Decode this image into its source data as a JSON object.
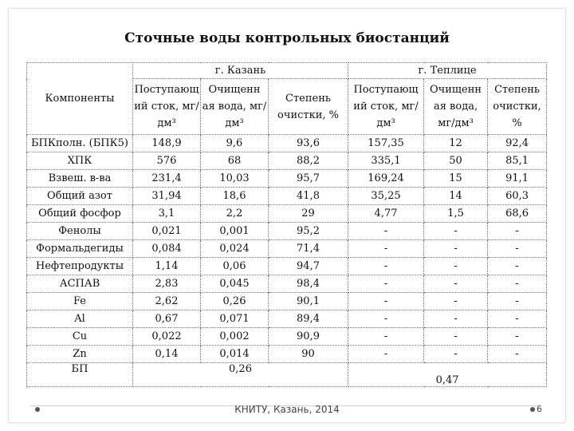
{
  "title": "Сточные воды контрольных биостанций",
  "table": {
    "components_header": "Компоненты",
    "city1": "г. Казань",
    "city2": "г. Теплице",
    "sub_headers": [
      "Поступающ ий сток, мг/дм³",
      "Очищенн ая вода, мг/дм³",
      "Степень очистки, %",
      "Поступающ ий сток, мг/дм³",
      "Очищенн ая вода, мг/дм³",
      "Степень очистки, %"
    ],
    "rows": [
      [
        "БПКполн. (БПК5)",
        "148,9",
        "9,6",
        "93,6",
        "157,35",
        "12",
        "92,4"
      ],
      [
        "ХПК",
        "576",
        "68",
        "88,2",
        "335,1",
        "50",
        "85,1"
      ],
      [
        "Взвеш. в-ва",
        "231,4",
        "10,03",
        "95,7",
        "169,24",
        "15",
        "91,1"
      ],
      [
        "Общий азот",
        "31,94",
        "18,6",
        "41,8",
        "35,25",
        "14",
        "60,3"
      ],
      [
        "Общий фосфор",
        "3,1",
        "2,2",
        "29",
        "4,77",
        "1,5",
        "68,6"
      ],
      [
        "Фенолы",
        "0,021",
        "0,001",
        "95,2",
        "-",
        "-",
        "-"
      ],
      [
        "Формальдегиды",
        "0,084",
        "0,024",
        "71,4",
        "-",
        "-",
        "-"
      ],
      [
        "Нефтепродукты",
        "1,14",
        "0,06",
        "94,7",
        "-",
        "-",
        "-"
      ],
      [
        "АСПАВ",
        "2,83",
        "0,045",
        "98,4",
        "-",
        "-",
        "-"
      ],
      [
        "Fe",
        "2,62",
        "0,26",
        "90,1",
        "-",
        "-",
        "-"
      ],
      [
        "Al",
        "0,67",
        "0,071",
        "89,4",
        "-",
        "-",
        "-"
      ],
      [
        "Cu",
        "0,022",
        "0,002",
        "90,9",
        "-",
        "-",
        "-"
      ],
      [
        "Zn",
        "0,14",
        "0,014",
        "90",
        "-",
        "-",
        "-"
      ]
    ],
    "last_row": {
      "label": "БП",
      "city1_value": "0,26",
      "city2_value": "0,47"
    }
  },
  "footer": {
    "text": "КНИТУ, Казань, 2014",
    "page": "6"
  }
}
